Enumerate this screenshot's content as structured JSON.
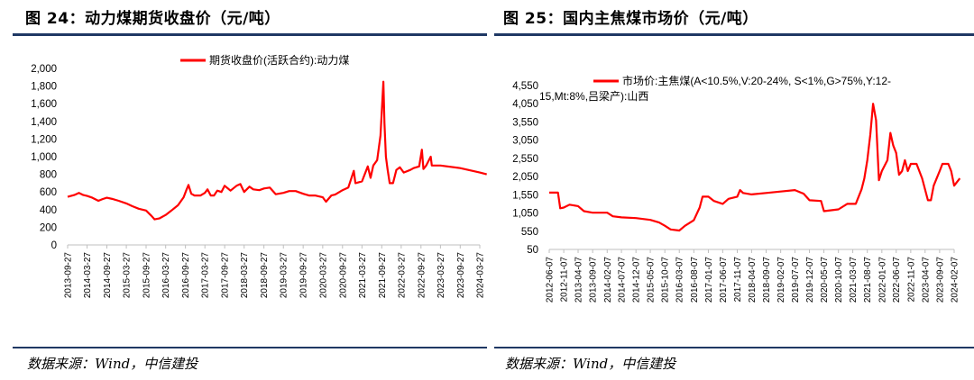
{
  "left": {
    "title": "图 24：动力煤期货收盘价（元/吨）",
    "source": "数据来源：Wind，中信建投",
    "chart_data": {
      "type": "line",
      "title": "",
      "xlabel": "",
      "ylabel": "",
      "ylim": [
        0,
        2000
      ],
      "y_ticks": [
        0,
        200,
        400,
        600,
        800,
        1000,
        1200,
        1400,
        1600,
        1800,
        2000
      ],
      "y_tick_labels": [
        "0",
        "200",
        "400",
        "600",
        "800",
        "1,000",
        "1,200",
        "1,400",
        "1,600",
        "1,800",
        "2,000"
      ],
      "x_ticks": [
        "2013-09-27",
        "2014-03-27",
        "2014-09-27",
        "2015-03-27",
        "2015-09-27",
        "2016-03-27",
        "2016-09-27",
        "2017-03-27",
        "2017-09-27",
        "2018-03-27",
        "2018-09-27",
        "2019-03-27",
        "2019-09-27",
        "2020-03-27",
        "2020-09-27",
        "2021-03-27",
        "2021-09-27",
        "2022-03-27",
        "2022-09-27",
        "2023-03-27",
        "2023-09-27",
        "2024-03-27"
      ],
      "legend_position": "top-center",
      "series": [
        {
          "name": "期货收盘价(活跃合约):动力煤",
          "color": "#ff0000",
          "points": [
            [
              "2013-09-27",
              545
            ],
            [
              "2013-11-27",
              565
            ],
            [
              "2014-01-10",
              590
            ],
            [
              "2014-02-20",
              565
            ],
            [
              "2014-03-27",
              555
            ],
            [
              "2014-05-15",
              535
            ],
            [
              "2014-07-10",
              500
            ],
            [
              "2014-08-20",
              520
            ],
            [
              "2014-09-27",
              535
            ],
            [
              "2014-11-20",
              520
            ],
            [
              "2015-01-15",
              500
            ],
            [
              "2015-03-27",
              470
            ],
            [
              "2015-05-20",
              440
            ],
            [
              "2015-07-20",
              410
            ],
            [
              "2015-09-27",
              390
            ],
            [
              "2015-11-15",
              330
            ],
            [
              "2015-12-15",
              290
            ],
            [
              "2016-01-27",
              300
            ],
            [
              "2016-03-27",
              340
            ],
            [
              "2016-05-20",
              390
            ],
            [
              "2016-07-20",
              450
            ],
            [
              "2016-09-10",
              540
            ],
            [
              "2016-10-05",
              620
            ],
            [
              "2016-10-25",
              680
            ],
            [
              "2016-11-20",
              580
            ],
            [
              "2016-12-20",
              560
            ],
            [
              "2017-02-15",
              560
            ],
            [
              "2017-03-27",
              590
            ],
            [
              "2017-04-20",
              630
            ],
            [
              "2017-05-20",
              560
            ],
            [
              "2017-06-20",
              560
            ],
            [
              "2017-07-20",
              615
            ],
            [
              "2017-08-27",
              600
            ],
            [
              "2017-09-27",
              670
            ],
            [
              "2017-11-20",
              615
            ],
            [
              "2018-01-15",
              670
            ],
            [
              "2018-02-20",
              690
            ],
            [
              "2018-03-27",
              600
            ],
            [
              "2018-05-15",
              660
            ],
            [
              "2018-06-20",
              630
            ],
            [
              "2018-08-15",
              620
            ],
            [
              "2018-09-27",
              640
            ],
            [
              "2018-11-20",
              650
            ],
            [
              "2019-01-15",
              575
            ],
            [
              "2019-03-27",
              590
            ],
            [
              "2019-05-20",
              610
            ],
            [
              "2019-07-20",
              610
            ],
            [
              "2019-09-27",
              580
            ],
            [
              "2019-11-20",
              560
            ],
            [
              "2020-01-15",
              560
            ],
            [
              "2020-03-27",
              540
            ],
            [
              "2020-04-27",
              490
            ],
            [
              "2020-06-15",
              560
            ],
            [
              "2020-07-20",
              570
            ],
            [
              "2020-09-27",
              620
            ],
            [
              "2020-11-20",
              650
            ],
            [
              "2021-01-10",
              840
            ],
            [
              "2021-01-25",
              700
            ],
            [
              "2021-03-27",
              720
            ],
            [
              "2021-05-20",
              890
            ],
            [
              "2021-06-15",
              760
            ],
            [
              "2021-07-10",
              900
            ],
            [
              "2021-08-15",
              960
            ],
            [
              "2021-09-15",
              1240
            ],
            [
              "2021-10-12",
              1850
            ],
            [
              "2021-10-22",
              1380
            ],
            [
              "2021-11-05",
              1000
            ],
            [
              "2021-11-20",
              860
            ],
            [
              "2021-12-10",
              700
            ],
            [
              "2022-01-10",
              700
            ],
            [
              "2022-02-10",
              850
            ],
            [
              "2022-03-15",
              880
            ],
            [
              "2022-04-20",
              820
            ],
            [
              "2022-06-20",
              850
            ],
            [
              "2022-07-20",
              870
            ],
            [
              "2022-09-10",
              890
            ],
            [
              "2022-10-05",
              1080
            ],
            [
              "2022-10-20",
              860
            ],
            [
              "2022-11-15",
              900
            ],
            [
              "2022-12-10",
              960
            ],
            [
              "2022-12-27",
              1000
            ],
            [
              "2023-01-06",
              900
            ],
            [
              "2023-03-27",
              900
            ],
            [
              "2023-09-27",
              870
            ],
            [
              "2024-03-27",
              820
            ],
            [
              "2024-05-31",
              800
            ]
          ]
        }
      ]
    }
  },
  "right": {
    "title": "图 25：国内主焦煤市场价（元/吨）",
    "source": "数据来源：Wind，中信建投",
    "chart_data": {
      "type": "line",
      "title": "",
      "xlabel": "",
      "ylabel": "",
      "ylim": [
        50,
        4550
      ],
      "y_ticks": [
        50,
        550,
        1050,
        1550,
        2050,
        2550,
        3050,
        3550,
        4050,
        4550
      ],
      "y_tick_labels": [
        "50",
        "550",
        "1,050",
        "1,550",
        "2,050",
        "2,550",
        "3,050",
        "3,550",
        "4,050",
        "4,550"
      ],
      "x_ticks": [
        "2012-06-07",
        "2012-11-07",
        "2013-04-07",
        "2013-09-07",
        "2014-02-07",
        "2014-07-07",
        "2014-12-07",
        "2015-05-07",
        "2015-10-07",
        "2016-03-07",
        "2016-08-07",
        "2017-01-07",
        "2017-06-07",
        "2017-11-07",
        "2018-04-07",
        "2018-09-07",
        "2019-02-07",
        "2019-07-07",
        "2019-12-07",
        "2020-05-07",
        "2020-10-07",
        "2021-03-07",
        "2021-08-07",
        "2022-01-07",
        "2022-06-07",
        "2022-11-07",
        "2023-04-07",
        "2023-09-07",
        "2024-02-07"
      ],
      "legend_position": "top-center",
      "series": [
        {
          "name": "市场价:主焦煤(A<10.5%,V:20-24%, S<1%,G>75%,Y:12-15,Mt:8%,吕梁产):山西",
          "color": "#ff0000",
          "points": [
            [
              "2012-06-07",
              1610
            ],
            [
              "2012-09-07",
              1610
            ],
            [
              "2012-10-01",
              1180
            ],
            [
              "2012-11-07",
              1200
            ],
            [
              "2013-01-07",
              1280
            ],
            [
              "2013-04-07",
              1240
            ],
            [
              "2013-06-07",
              1100
            ],
            [
              "2013-09-07",
              1060
            ],
            [
              "2014-02-07",
              1060
            ],
            [
              "2014-04-07",
              960
            ],
            [
              "2014-07-07",
              930
            ],
            [
              "2014-12-07",
              910
            ],
            [
              "2015-05-07",
              860
            ],
            [
              "2015-08-07",
              790
            ],
            [
              "2015-10-07",
              700
            ],
            [
              "2015-12-07",
              600
            ],
            [
              "2016-03-07",
              570
            ],
            [
              "2016-05-07",
              700
            ],
            [
              "2016-08-07",
              850
            ],
            [
              "2016-10-07",
              1200
            ],
            [
              "2016-11-07",
              1500
            ],
            [
              "2017-01-07",
              1500
            ],
            [
              "2017-03-07",
              1380
            ],
            [
              "2017-06-07",
              1300
            ],
            [
              "2017-08-07",
              1440
            ],
            [
              "2017-11-07",
              1500
            ],
            [
              "2017-12-07",
              1680
            ],
            [
              "2018-01-07",
              1600
            ],
            [
              "2018-04-07",
              1560
            ],
            [
              "2018-09-07",
              1600
            ],
            [
              "2019-02-07",
              1640
            ],
            [
              "2019-07-07",
              1680
            ],
            [
              "2019-10-07",
              1580
            ],
            [
              "2019-12-07",
              1400
            ],
            [
              "2020-04-07",
              1380
            ],
            [
              "2020-05-07",
              1100
            ],
            [
              "2020-10-07",
              1150
            ],
            [
              "2021-01-07",
              1300
            ],
            [
              "2021-04-07",
              1300
            ],
            [
              "2021-06-07",
              1700
            ],
            [
              "2021-07-07",
              2000
            ],
            [
              "2021-08-07",
              2500
            ],
            [
              "2021-09-07",
              3200
            ],
            [
              "2021-10-07",
              4050
            ],
            [
              "2021-11-07",
              3600
            ],
            [
              "2021-12-07",
              1950
            ],
            [
              "2022-01-07",
              2200
            ],
            [
              "2022-03-07",
              2500
            ],
            [
              "2022-04-07",
              3250
            ],
            [
              "2022-05-07",
              2900
            ],
            [
              "2022-06-07",
              2700
            ],
            [
              "2022-07-07",
              2100
            ],
            [
              "2022-08-07",
              2200
            ],
            [
              "2022-09-07",
              2500
            ],
            [
              "2022-10-07",
              2200
            ],
            [
              "2022-11-07",
              2400
            ],
            [
              "2022-12-07",
              2400
            ],
            [
              "2023-01-07",
              2400
            ],
            [
              "2023-03-07",
              2000
            ],
            [
              "2023-05-07",
              1400
            ],
            [
              "2023-06-07",
              1400
            ],
            [
              "2023-07-07",
              1800
            ],
            [
              "2023-08-07",
              2000
            ],
            [
              "2023-09-07",
              2200
            ],
            [
              "2023-10-07",
              2400
            ],
            [
              "2023-12-07",
              2400
            ],
            [
              "2024-01-07",
              2200
            ],
            [
              "2024-02-07",
              1800
            ],
            [
              "2024-03-07",
              1900
            ],
            [
              "2024-04-07",
              2000
            ]
          ]
        }
      ]
    }
  }
}
